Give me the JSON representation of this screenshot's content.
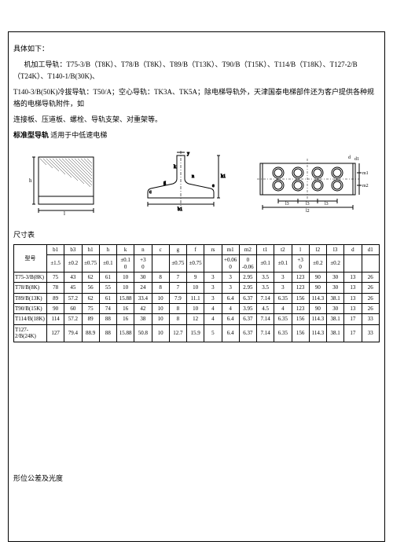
{
  "intro": {
    "line1": "具体如下：",
    "line2": "机加工导轨：T75-3/B（T8K）、T78/B（T8K）、T89/B（T13K）、T90/B（T15K）、T114/B（T18K）、T127-2/B（T24K）、T140-1/B(30K)、",
    "line3": "T140-3/B(50K)冷拔导轨：T50/A；空心导轨：TK3A、TK5A；除电梯导轨外，天津国泰电梯部件还为客户提供各种规格的电梯导轨附件，如",
    "line4": "连接板、压道板、螺栓、导轨支架、对重架等。",
    "line5a": "标准型导轨",
    "line5b": " 适用于中低速电梯"
  },
  "dim_title": "尺寸表",
  "table": {
    "head1": [
      "型号",
      "b1",
      "b3",
      "h1",
      "h",
      "k",
      "n",
      "c",
      "g",
      "f",
      "rs",
      "m1",
      "m2",
      "t1",
      "t2",
      "l",
      "l2",
      "l3",
      "d",
      "d1"
    ],
    "head2": [
      "",
      "±1.5",
      "±0.2",
      "±0.75",
      "±0.1",
      "±0.1\n0",
      "+3\n0",
      "",
      "±0.75",
      "±0.75",
      "",
      "+0.06\n0",
      "0\n-0.06",
      "±0.1",
      "±0.1",
      "+3\n0",
      "±0.2",
      "±0.2",
      "",
      ""
    ],
    "rows": [
      [
        "T75-3/B(8K)",
        "75",
        "43",
        "62",
        "61",
        "10",
        "30",
        "8",
        "7",
        "9",
        "3",
        "3",
        "2.95",
        "3.5",
        "3",
        "123",
        "90",
        "30",
        "13",
        "26"
      ],
      [
        "T78/B(8K)",
        "78",
        "45",
        "56",
        "55",
        "10",
        "24",
        "8",
        "7",
        "10",
        "3",
        "3",
        "2.95",
        "3.5",
        "3",
        "123",
        "90",
        "30",
        "13",
        "26"
      ],
      [
        "T89/B(13K)",
        "89",
        "57.2",
        "62",
        "61",
        "15.88",
        "33.4",
        "10",
        "7.9",
        "11.1",
        "3",
        "6.4",
        "6.37",
        "7.14",
        "6.35",
        "156",
        "114.3",
        "38.1",
        "13",
        "26"
      ],
      [
        "T90/B(15K)",
        "90",
        "60",
        "75",
        "74",
        "16",
        "42",
        "10",
        "8",
        "10",
        "4",
        "4",
        "3.95",
        "4.5",
        "4",
        "123",
        "90",
        "30",
        "13",
        "26"
      ],
      [
        "T114/B(18K)",
        "114",
        "57.2",
        "89",
        "88",
        "16",
        "38",
        "10",
        "8",
        "12",
        "4",
        "6.4",
        "6.37",
        "7.14",
        "6.35",
        "156",
        "114.3",
        "38.1",
        "17",
        "33"
      ],
      [
        "T127-2/B(24K)",
        "127",
        "79.4",
        "88.9",
        "88",
        "15.88",
        "50.8",
        "10",
        "12.7",
        "15.9",
        "5",
        "6.4",
        "6.37",
        "7.14",
        "6.35",
        "156",
        "114.3",
        "38.1",
        "17",
        "33"
      ]
    ]
  },
  "footer": "形位公差及光度"
}
